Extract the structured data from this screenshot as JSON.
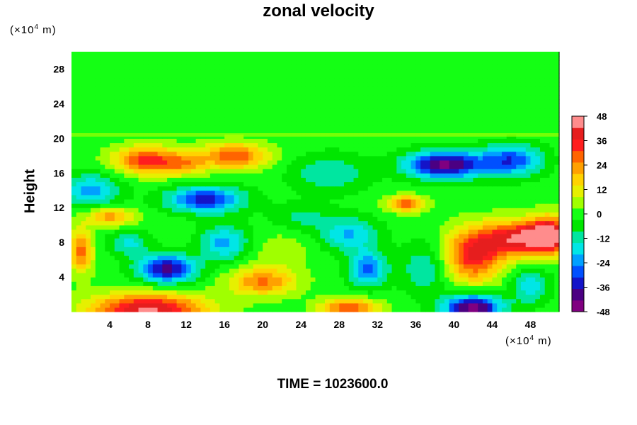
{
  "chart_data": {
    "type": "heatmap",
    "title": "zonal velocity",
    "ylabel": "Height",
    "xlabel": "",
    "x_unit_prefix": "(×10",
    "x_unit_exp": "4",
    "x_unit_suffix": " m)",
    "y_unit_prefix": "(×10",
    "y_unit_exp": "4",
    "y_unit_suffix": " m)",
    "xlim": [
      0,
      51
    ],
    "ylim": [
      0,
      30
    ],
    "x_ticks": [
      4,
      8,
      12,
      16,
      20,
      24,
      28,
      32,
      36,
      40,
      44,
      48
    ],
    "y_ticks": [
      4,
      8,
      12,
      16,
      20,
      24,
      28
    ],
    "colorbar": {
      "min": -48,
      "max": 48,
      "ticks": [
        48,
        36,
        24,
        12,
        0,
        -12,
        -24,
        -36,
        -48
      ],
      "colors": [
        "#800080",
        "#4b0082",
        "#1414c8",
        "#0050ff",
        "#00a0ff",
        "#00e6e6",
        "#00e6a0",
        "#00e600",
        "#14ff14",
        "#a0ff00",
        "#e6f000",
        "#ffd200",
        "#ffa000",
        "#ff6400",
        "#ff1e1e",
        "#e61e1e",
        "#ff8c8c"
      ]
    },
    "features": [
      {
        "x": 25,
        "y": 26,
        "sx": 40,
        "sy": 6,
        "v": 0
      },
      {
        "x": 8,
        "y": 17.5,
        "sx": 3.5,
        "sy": 1.6,
        "v": 34
      },
      {
        "x": 12,
        "y": 17,
        "sx": 2.2,
        "sy": 1.2,
        "v": 16
      },
      {
        "x": 17,
        "y": 18,
        "sx": 3.5,
        "sy": 1.5,
        "v": 30
      },
      {
        "x": 39,
        "y": 17,
        "sx": 4,
        "sy": 1.6,
        "v": -44
      },
      {
        "x": 46,
        "y": 17.5,
        "sx": 3.2,
        "sy": 1.8,
        "v": -30
      },
      {
        "x": 2,
        "y": 14,
        "sx": 3,
        "sy": 2,
        "v": -22
      },
      {
        "x": 14,
        "y": 13,
        "sx": 4,
        "sy": 1.5,
        "v": -34
      },
      {
        "x": 27,
        "y": 16,
        "sx": 4,
        "sy": 2.2,
        "v": -14
      },
      {
        "x": 4,
        "y": 11,
        "sx": 2.5,
        "sy": 1.1,
        "v": 24
      },
      {
        "x": 35,
        "y": 12.5,
        "sx": 2,
        "sy": 0.9,
        "v": 30
      },
      {
        "x": 47,
        "y": 8.5,
        "sx": 4,
        "sy": 2,
        "v": 42
      },
      {
        "x": 42,
        "y": 6.5,
        "sx": 3,
        "sy": 3,
        "v": 36
      },
      {
        "x": 50,
        "y": 9,
        "sx": 2,
        "sy": 2,
        "v": 38
      },
      {
        "x": 10,
        "y": 5,
        "sx": 3,
        "sy": 1.6,
        "v": -40
      },
      {
        "x": 16,
        "y": 8,
        "sx": 2.5,
        "sy": 2,
        "v": -22
      },
      {
        "x": 20,
        "y": 3.5,
        "sx": 3.5,
        "sy": 1.6,
        "v": 26
      },
      {
        "x": 29,
        "y": 9,
        "sx": 3,
        "sy": 2,
        "v": -20
      },
      {
        "x": 31,
        "y": 5,
        "sx": 2,
        "sy": 2,
        "v": -28
      },
      {
        "x": 37,
        "y": 5,
        "sx": 2.5,
        "sy": 3,
        "v": -14
      },
      {
        "x": 8,
        "y": 0.3,
        "sx": 6,
        "sy": 1.8,
        "v": 44
      },
      {
        "x": 29,
        "y": 0.5,
        "sx": 3,
        "sy": 1.1,
        "v": 30
      },
      {
        "x": 42,
        "y": 0.5,
        "sx": 3,
        "sy": 1.5,
        "v": -46
      },
      {
        "x": 1,
        "y": 7,
        "sx": 1.2,
        "sy": 2.5,
        "v": 28
      },
      {
        "x": 6,
        "y": 8,
        "sx": 2,
        "sy": 1.5,
        "v": -16
      },
      {
        "x": 48,
        "y": 3,
        "sx": 2,
        "sy": 2,
        "v": -18
      },
      {
        "x": 24,
        "y": 11,
        "sx": 3,
        "sy": 1.5,
        "v": -10
      },
      {
        "x": 22,
        "y": 7,
        "sx": 3,
        "sy": 2,
        "v": 8
      }
    ]
  },
  "footer": {
    "time_text": "TIME = 1023600.0"
  }
}
